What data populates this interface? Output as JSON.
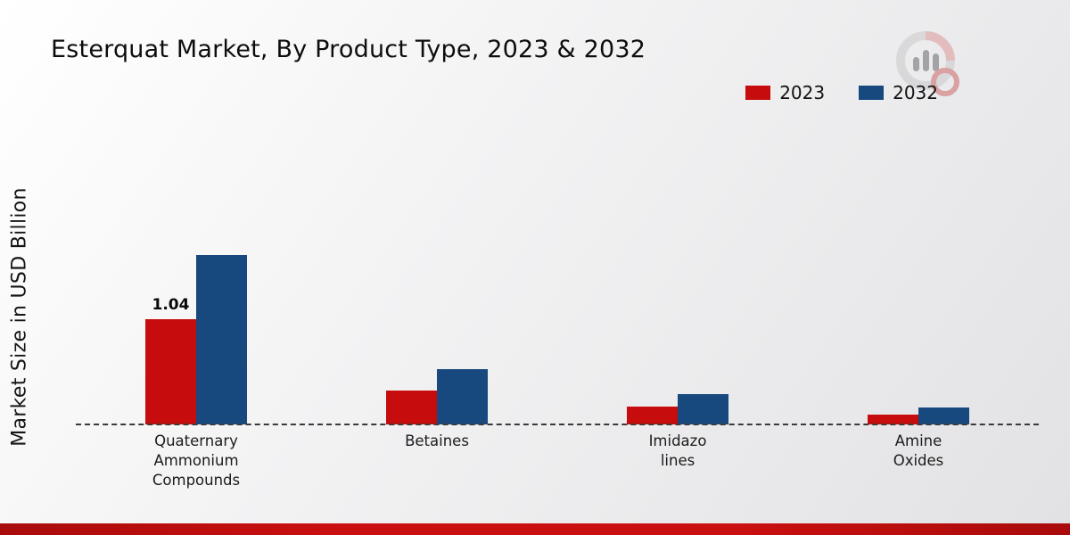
{
  "title": "Esterquat Market, By Product Type, 2023 & 2032",
  "y_axis_label": "Market Size in USD Billion",
  "legend": [
    {
      "label": "2023",
      "color": "#c60c0c"
    },
    {
      "label": "2032",
      "color": "#17497f"
    }
  ],
  "brand_logo": "market-research-chart-logo",
  "chart_data": {
    "type": "bar",
    "title": "Esterquat Market, By Product Type, 2023 & 2032",
    "ylabel": "Market Size in USD Billion",
    "xlabel": "",
    "categories": [
      "Quaternary\nAmmonium\nCompounds",
      "Betaines",
      "Imidazo\nlines",
      "Amine\nOxides"
    ],
    "series": [
      {
        "name": "2023",
        "color": "#c60c0c",
        "values": [
          1.04,
          0.34,
          0.18,
          0.1
        ],
        "labels": [
          "1.04",
          "",
          "",
          ""
        ]
      },
      {
        "name": "2032",
        "color": "#17497f",
        "values": [
          1.68,
          0.55,
          0.3,
          0.17
        ],
        "labels": [
          "",
          "",
          "",
          ""
        ]
      }
    ],
    "ylim": [
      0,
      2.6
    ],
    "grid": false,
    "legend_position": "top-right",
    "baseline_style": "dashed",
    "units": "USD Billion"
  }
}
